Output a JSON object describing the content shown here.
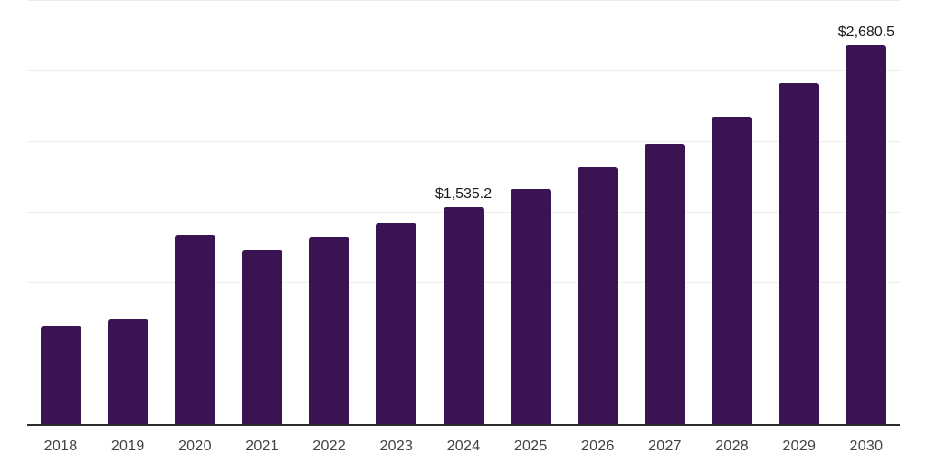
{
  "chart_data": {
    "type": "bar",
    "title": "",
    "xlabel": "",
    "ylabel": "",
    "categories": [
      "2018",
      "2019",
      "2020",
      "2021",
      "2022",
      "2023",
      "2024",
      "2025",
      "2026",
      "2027",
      "2028",
      "2029",
      "2030"
    ],
    "values": [
      698,
      747,
      1338,
      1230,
      1327,
      1421,
      1535.2,
      1663,
      1819,
      1987,
      2178,
      2411,
      2680.5
    ],
    "point_labels": [
      "",
      "",
      "",
      "",
      "",
      "",
      "$1,535.2",
      "",
      "",
      "",
      "",
      "",
      "$2,680.5"
    ],
    "ylim": [
      0,
      3000
    ],
    "gridline_step": 500,
    "grid": "horizontal-only",
    "legend": "none",
    "y_axis_labels_visible": false,
    "colors": {
      "bar": "#3A1353",
      "axis_line": "#2D2D2D",
      "gridline": "#EDEDED",
      "value_label": "#1A1A1A",
      "tick_label": "#414141",
      "background": "#FFFFFF"
    }
  }
}
